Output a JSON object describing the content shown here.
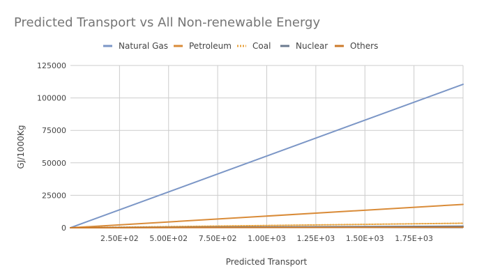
{
  "chart_data": {
    "type": "line",
    "title": "Predicted Transport vs All Non-renewable Energy",
    "xlabel": "Predicted Transport",
    "ylabel": "GJ/1000Kg",
    "xlim": [
      0,
      2000
    ],
    "ylim": [
      0,
      125000
    ],
    "x_ticks": [
      250,
      500,
      750,
      1000,
      1250,
      1500,
      1750
    ],
    "x_tick_labels": [
      "2.50E+02",
      "5.00E+02",
      "7.50E+02",
      "1.00E+03",
      "1.25E+03",
      "1.50E+03",
      "1.75E+03"
    ],
    "y_ticks": [
      0,
      25000,
      50000,
      75000,
      100000,
      125000
    ],
    "y_tick_labels": [
      "0",
      "25000",
      "50000",
      "75000",
      "100000",
      "125000"
    ],
    "grid": true,
    "legend": "top",
    "x": [
      0,
      2000
    ],
    "series": [
      {
        "name": "Natural Gas",
        "values": [
          0,
          110500
        ],
        "color": "#7b96c6",
        "style": "solid"
      },
      {
        "name": "Petroleum",
        "values": [
          0,
          18000
        ],
        "color": "#d98b38",
        "style": "solid"
      },
      {
        "name": "Coal",
        "values": [
          0,
          3500
        ],
        "color": "#e8a33f",
        "style": "dashed"
      },
      {
        "name": "Nuclear",
        "values": [
          0,
          1200
        ],
        "color": "#6b7a8f",
        "style": "solid"
      },
      {
        "name": "Others",
        "values": [
          0,
          400
        ],
        "color": "#cc7a2a",
        "style": "solid"
      }
    ]
  }
}
